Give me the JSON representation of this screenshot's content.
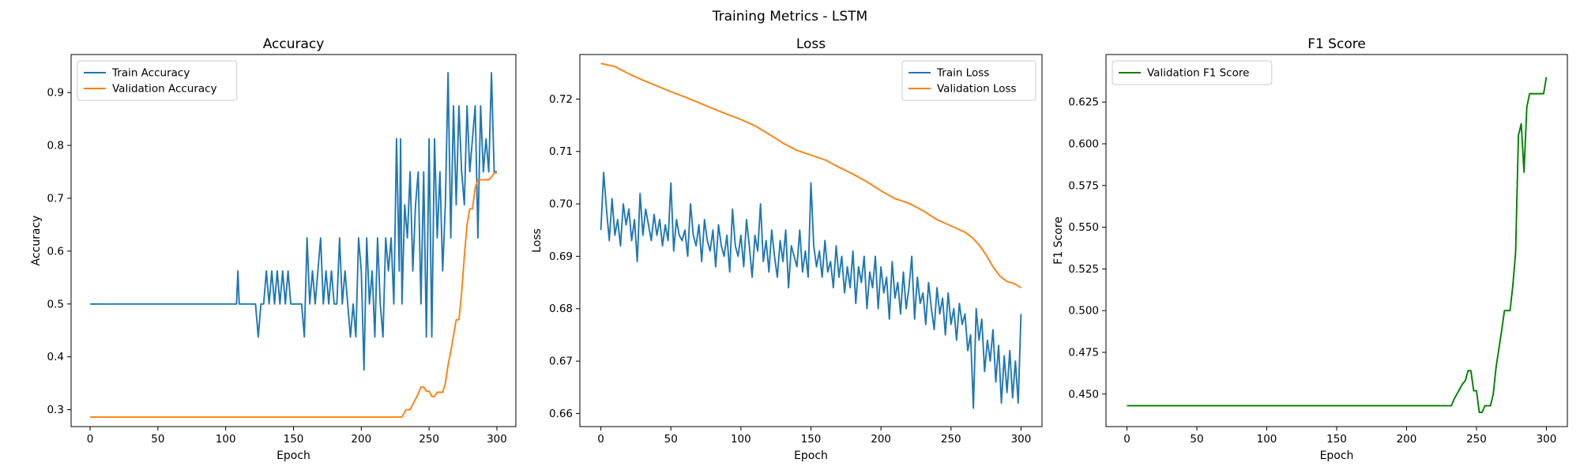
{
  "figure": {
    "title": "Training Metrics - LSTM"
  },
  "chart_data": [
    {
      "type": "line",
      "title": "Accuracy",
      "xlabel": "Epoch",
      "ylabel": "Accuracy",
      "xlim": [
        -14,
        314
      ],
      "ylim": [
        0.268,
        0.972
      ],
      "xticks": [
        0,
        50,
        100,
        150,
        200,
        250,
        300
      ],
      "yticks": [
        0.3,
        0.4,
        0.5,
        0.6,
        0.7,
        0.8,
        0.9
      ],
      "ytick_decimals": 1,
      "legend": {
        "placement": "top-left"
      },
      "series": [
        {
          "name": "Train Accuracy",
          "color": "#1f77b4",
          "x": [
            0,
            50,
            108,
            109,
            110,
            115,
            120,
            122,
            124,
            126,
            128,
            130,
            132,
            134,
            136,
            138,
            140,
            142,
            144,
            146,
            148,
            150,
            152,
            154,
            156,
            158,
            160,
            162,
            164,
            166,
            168,
            170,
            172,
            174,
            176,
            178,
            180,
            182,
            184,
            186,
            188,
            190,
            192,
            194,
            196,
            198,
            200,
            202,
            204,
            206,
            208,
            210,
            212,
            214,
            216,
            218,
            220,
            222,
            224,
            226,
            228,
            229,
            230,
            232,
            234,
            236,
            238,
            240,
            242,
            244,
            246,
            248,
            250,
            252,
            254,
            256,
            258,
            260,
            262,
            264,
            266,
            268,
            270,
            272,
            274,
            276,
            278,
            280,
            282,
            284,
            286,
            288,
            290,
            292,
            294,
            296,
            298,
            300
          ],
          "y": [
            0.5,
            0.5,
            0.5,
            0.5625,
            0.5,
            0.5,
            0.5,
            0.5,
            0.4375,
            0.5,
            0.5,
            0.5625,
            0.5,
            0.5625,
            0.5,
            0.5625,
            0.5,
            0.5625,
            0.5,
            0.5625,
            0.5,
            0.5,
            0.5,
            0.5,
            0.5,
            0.4375,
            0.625,
            0.5,
            0.5625,
            0.5,
            0.5625,
            0.625,
            0.5,
            0.5625,
            0.5,
            0.5625,
            0.5,
            0.5,
            0.625,
            0.5,
            0.5625,
            0.5,
            0.4375,
            0.5,
            0.4375,
            0.625,
            0.5625,
            0.375,
            0.625,
            0.5,
            0.5625,
            0.4375,
            0.625,
            0.5,
            0.4375,
            0.625,
            0.5625,
            0.625,
            0.5,
            0.8125,
            0.5625,
            0.8125,
            0.5,
            0.6875,
            0.625,
            0.75,
            0.5625,
            0.6875,
            0.75,
            0.5,
            0.75,
            0.4375,
            0.8125,
            0.4375,
            0.8125,
            0.625,
            0.75,
            0.5625,
            0.6875,
            0.9375,
            0.625,
            0.875,
            0.6875,
            0.875,
            0.75,
            0.6875,
            0.875,
            0.75,
            0.8125,
            0.875,
            0.625,
            0.875,
            0.75,
            0.8125,
            0.75,
            0.9375,
            0.75,
            0.75
          ]
        },
        {
          "name": "Validation Accuracy",
          "color": "#ff7f0e",
          "x": [
            0,
            50,
            100,
            150,
            200,
            230,
            233,
            236,
            238,
            240,
            242,
            244,
            246,
            248,
            250,
            252,
            254,
            256,
            258,
            260,
            262,
            264,
            266,
            268,
            270,
            272,
            274,
            276,
            278,
            280,
            282,
            284,
            286,
            288,
            290,
            292,
            294,
            296,
            298,
            300
          ],
          "y": [
            0.286,
            0.286,
            0.286,
            0.286,
            0.286,
            0.286,
            0.3,
            0.3,
            0.31,
            0.32,
            0.33,
            0.343,
            0.343,
            0.335,
            0.335,
            0.325,
            0.325,
            0.333,
            0.333,
            0.333,
            0.35,
            0.385,
            0.41,
            0.44,
            0.47,
            0.47,
            0.52,
            0.59,
            0.65,
            0.68,
            0.68,
            0.72,
            0.735,
            0.735,
            0.735,
            0.735,
            0.735,
            0.74,
            0.748,
            0.748
          ]
        }
      ]
    },
    {
      "type": "line",
      "title": "Loss",
      "xlabel": "Epoch",
      "ylabel": "Loss",
      "xlim": [
        -15,
        315
      ],
      "ylim": [
        0.6575,
        0.7285
      ],
      "xticks": [
        0,
        50,
        100,
        150,
        200,
        250,
        300
      ],
      "yticks": [
        0.66,
        0.67,
        0.68,
        0.69,
        0.7,
        0.71,
        0.72
      ],
      "ytick_decimals": 2,
      "legend": {
        "placement": "top-right"
      },
      "series": [
        {
          "name": "Train Loss",
          "color": "#1f77b4",
          "x": [
            0,
            2,
            4,
            6,
            8,
            10,
            12,
            14,
            16,
            18,
            20,
            22,
            24,
            26,
            28,
            30,
            32,
            34,
            36,
            38,
            40,
            42,
            44,
            46,
            48,
            50,
            52,
            54,
            56,
            58,
            60,
            62,
            64,
            66,
            68,
            70,
            72,
            74,
            76,
            78,
            80,
            82,
            84,
            86,
            88,
            90,
            92,
            94,
            96,
            98,
            100,
            102,
            104,
            106,
            108,
            110,
            112,
            114,
            116,
            118,
            120,
            122,
            124,
            126,
            128,
            130,
            132,
            134,
            136,
            138,
            140,
            142,
            144,
            146,
            148,
            150,
            152,
            154,
            156,
            158,
            160,
            162,
            164,
            166,
            168,
            170,
            172,
            174,
            176,
            178,
            180,
            182,
            184,
            186,
            188,
            190,
            192,
            194,
            196,
            198,
            200,
            202,
            204,
            206,
            208,
            210,
            212,
            214,
            216,
            218,
            220,
            222,
            224,
            226,
            228,
            230,
            232,
            234,
            236,
            238,
            240,
            242,
            244,
            246,
            248,
            250,
            252,
            254,
            256,
            258,
            260,
            262,
            264,
            266,
            268,
            270,
            272,
            274,
            276,
            278,
            280,
            282,
            284,
            286,
            288,
            290,
            292,
            294,
            296,
            298,
            300
          ],
          "y": [
            0.695,
            0.706,
            0.699,
            0.693,
            0.701,
            0.694,
            0.697,
            0.692,
            0.7,
            0.696,
            0.699,
            0.693,
            0.697,
            0.689,
            0.702,
            0.694,
            0.699,
            0.696,
            0.693,
            0.698,
            0.694,
            0.697,
            0.692,
            0.696,
            0.693,
            0.704,
            0.691,
            0.697,
            0.694,
            0.693,
            0.695,
            0.69,
            0.7,
            0.694,
            0.692,
            0.696,
            0.689,
            0.697,
            0.693,
            0.691,
            0.695,
            0.688,
            0.696,
            0.692,
            0.69,
            0.694,
            0.687,
            0.699,
            0.692,
            0.69,
            0.694,
            0.688,
            0.697,
            0.692,
            0.686,
            0.694,
            0.691,
            0.7,
            0.689,
            0.693,
            0.687,
            0.695,
            0.69,
            0.686,
            0.693,
            0.689,
            0.695,
            0.684,
            0.692,
            0.69,
            0.688,
            0.695,
            0.687,
            0.691,
            0.686,
            0.704,
            0.692,
            0.688,
            0.691,
            0.686,
            0.693,
            0.687,
            0.689,
            0.684,
            0.692,
            0.686,
            0.69,
            0.683,
            0.688,
            0.684,
            0.691,
            0.681,
            0.688,
            0.685,
            0.69,
            0.68,
            0.687,
            0.684,
            0.69,
            0.68,
            0.688,
            0.683,
            0.686,
            0.678,
            0.689,
            0.682,
            0.685,
            0.679,
            0.687,
            0.68,
            0.684,
            0.69,
            0.678,
            0.686,
            0.681,
            0.683,
            0.677,
            0.685,
            0.68,
            0.676,
            0.684,
            0.679,
            0.682,
            0.675,
            0.683,
            0.677,
            0.68,
            0.674,
            0.681,
            0.677,
            0.679,
            0.672,
            0.675,
            0.661,
            0.68,
            0.674,
            0.678,
            0.668,
            0.674,
            0.67,
            0.676,
            0.666,
            0.673,
            0.662,
            0.671,
            0.664,
            0.672,
            0.663,
            0.67,
            0.662,
            0.679
          ]
        },
        {
          "name": "Validation Loss",
          "color": "#ff7f0e",
          "x": [
            0,
            10,
            20,
            30,
            40,
            50,
            60,
            70,
            80,
            90,
            100,
            110,
            120,
            130,
            140,
            150,
            160,
            170,
            180,
            190,
            200,
            210,
            220,
            230,
            240,
            250,
            260,
            265,
            270,
            275,
            280,
            285,
            290,
            295,
            300
          ],
          "y": [
            0.7268,
            0.7262,
            0.7248,
            0.7236,
            0.7225,
            0.7214,
            0.7204,
            0.7193,
            0.7182,
            0.7171,
            0.7161,
            0.7149,
            0.7133,
            0.7116,
            0.7102,
            0.7093,
            0.7084,
            0.707,
            0.7057,
            0.7042,
            0.7025,
            0.701,
            0.7001,
            0.6987,
            0.697,
            0.6958,
            0.6946,
            0.6936,
            0.6922,
            0.6903,
            0.688,
            0.6862,
            0.6852,
            0.6848,
            0.684
          ]
        }
      ]
    },
    {
      "type": "line",
      "title": "F1 Score",
      "xlabel": "Epoch",
      "ylabel": "F1 Score",
      "xlim": [
        -15,
        315
      ],
      "ylim": [
        0.4305,
        0.6535
      ],
      "xticks": [
        0,
        50,
        100,
        150,
        200,
        250,
        300
      ],
      "yticks": [
        0.45,
        0.475,
        0.5,
        0.525,
        0.55,
        0.575,
        0.6,
        0.625
      ],
      "ytick_decimals": 3,
      "legend": {
        "placement": "top-left"
      },
      "series": [
        {
          "name": "Validation F1 Score",
          "color": "#008000",
          "x": [
            0,
            50,
            100,
            150,
            200,
            232,
            234,
            236,
            240,
            242,
            244,
            246,
            248,
            250,
            252,
            254,
            256,
            258,
            260,
            262,
            264,
            266,
            268,
            270,
            272,
            274,
            276,
            278,
            280,
            282,
            284,
            286,
            288,
            290,
            292,
            294,
            296,
            298,
            300
          ],
          "y": [
            0.443,
            0.443,
            0.443,
            0.443,
            0.443,
            0.443,
            0.447,
            0.45,
            0.456,
            0.458,
            0.464,
            0.464,
            0.452,
            0.452,
            0.439,
            0.439,
            0.443,
            0.443,
            0.443,
            0.45,
            0.466,
            0.477,
            0.488,
            0.5,
            0.5,
            0.5,
            0.515,
            0.535,
            0.605,
            0.612,
            0.583,
            0.622,
            0.63,
            0.63,
            0.63,
            0.63,
            0.63,
            0.63,
            0.64
          ]
        }
      ]
    }
  ]
}
